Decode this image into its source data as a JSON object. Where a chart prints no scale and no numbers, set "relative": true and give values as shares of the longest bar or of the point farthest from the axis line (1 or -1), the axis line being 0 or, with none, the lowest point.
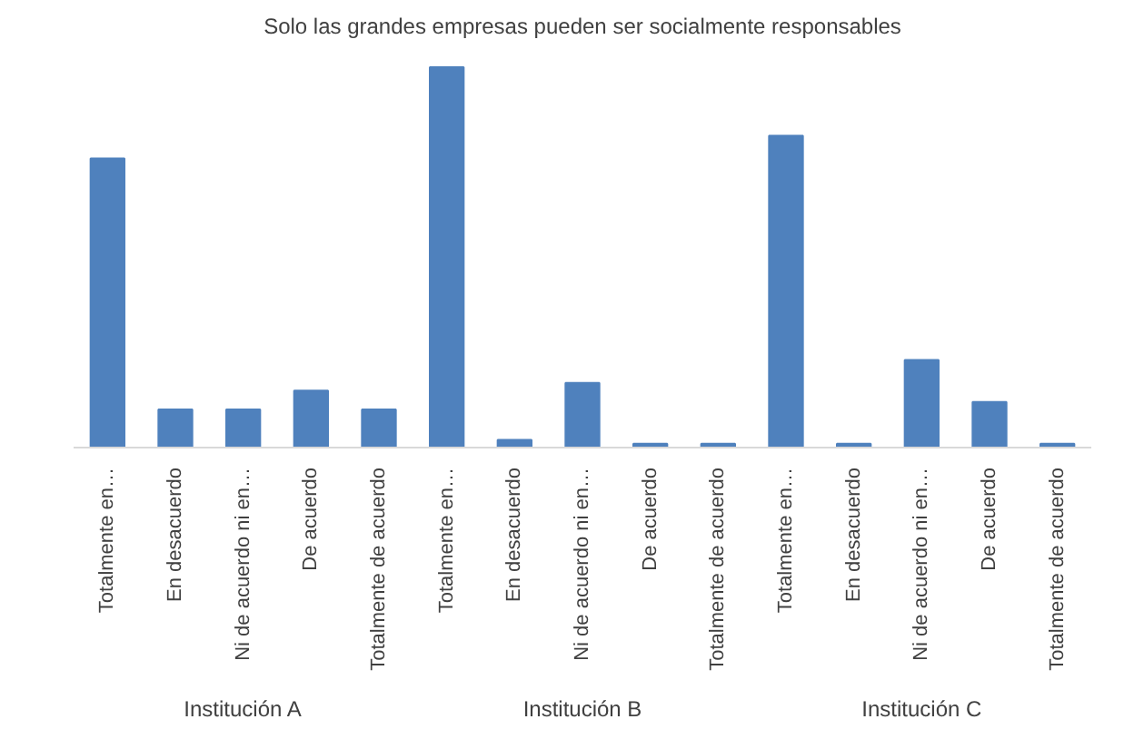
{
  "chart_data": {
    "type": "bar",
    "title": "Solo las grandes empresas pueden ser socialmente responsables",
    "categories": [
      "Totalmente en…",
      "En desacuerdo",
      "Ni de acuerdo ni en…",
      "De acuerdo",
      "Totalmente de acuerdo",
      "Totalmente en…",
      "En desacuerdo",
      "Ni de acuerdo ni en…",
      "De acuerdo",
      "Totalmente de acuerdo",
      "Totalmente en…",
      "En desacuerdo",
      "Ni de acuerdo ni en…",
      "De acuerdo",
      "Totalmente de acuerdo"
    ],
    "values": [
      0.76,
      0.1,
      0.1,
      0.15,
      0.1,
      1,
      0.02,
      0.17,
      0.01,
      0.01,
      0.82,
      0.01,
      0.23,
      0.12,
      0.01
    ],
    "color": "#4f81bd",
    "relative": true,
    "annotations": [
      "Institución A",
      "Institución B",
      "Institución C"
    ]
  }
}
